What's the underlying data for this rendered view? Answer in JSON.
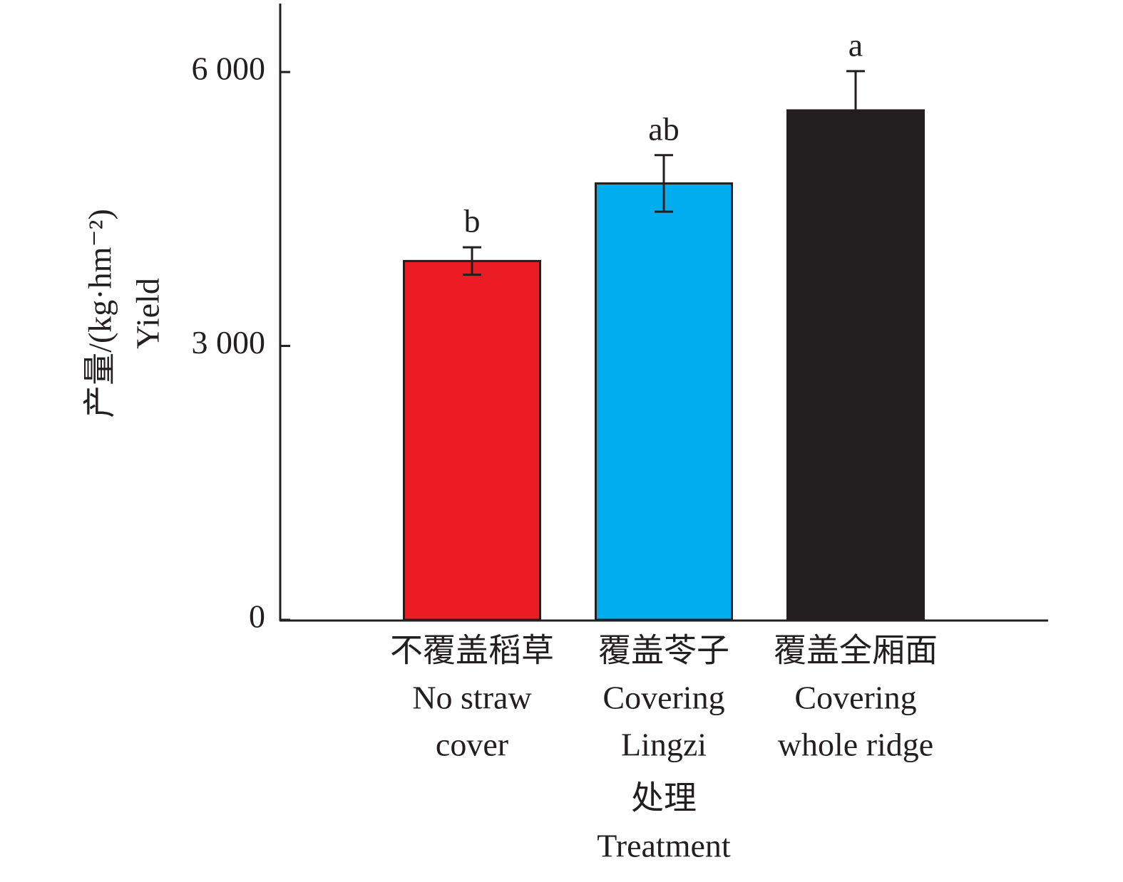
{
  "chart_data": {
    "type": "bar",
    "categories": [
      [
        "不覆盖稻草",
        "No straw",
        "cover"
      ],
      [
        "覆盖苓子",
        "Covering",
        "Lingzi"
      ],
      [
        "覆盖全厢面",
        "Covering",
        "whole ridge"
      ]
    ],
    "values": [
      3930,
      4780,
      5580
    ],
    "errors": [
      150,
      310,
      430
    ],
    "significance": [
      "b",
      "ab",
      "a"
    ],
    "colors": [
      "#ec1c24",
      "#00aeef",
      "#231f20"
    ],
    "x_label": [
      "处理",
      "Treatment"
    ],
    "y_label": [
      "产量/(kg·hm⁻²)",
      "Yield"
    ],
    "ylim": [
      0,
      6750
    ],
    "yticks": [
      {
        "value": 0,
        "label": "0"
      },
      {
        "value": 3000,
        "label": "3 000"
      },
      {
        "value": 6000,
        "label": "6 000"
      }
    ],
    "grid": false
  }
}
